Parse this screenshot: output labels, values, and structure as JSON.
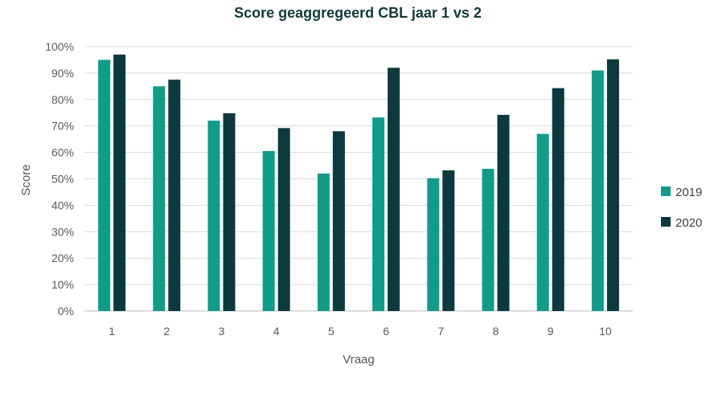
{
  "chart_data": {
    "type": "bar",
    "title": "Score geaggregeerd CBL jaar 1 vs 2",
    "xlabel": "Vraag",
    "ylabel": "Score",
    "categories": [
      "1",
      "2",
      "3",
      "4",
      "5",
      "6",
      "7",
      "8",
      "9",
      "10"
    ],
    "series": [
      {
        "name": "2019",
        "color": "#0f9d8a",
        "values": [
          95,
          85,
          72,
          60.5,
          52,
          73.2,
          50.2,
          53.8,
          67,
          91
        ]
      },
      {
        "name": "2020",
        "color": "#0b3a3e",
        "values": [
          97,
          87.5,
          74.8,
          69.2,
          68,
          92,
          53.2,
          74.2,
          84.3,
          95.2
        ]
      }
    ],
    "ylim": [
      0,
      100
    ],
    "yticks": [
      0,
      10,
      20,
      30,
      40,
      50,
      60,
      70,
      80,
      90,
      100
    ],
    "ytick_labels": [
      "0%",
      "10%",
      "20%",
      "30%",
      "40%",
      "50%",
      "60%",
      "70%",
      "80%",
      "90%",
      "100%"
    ],
    "grid": true,
    "legend_position": "right"
  }
}
